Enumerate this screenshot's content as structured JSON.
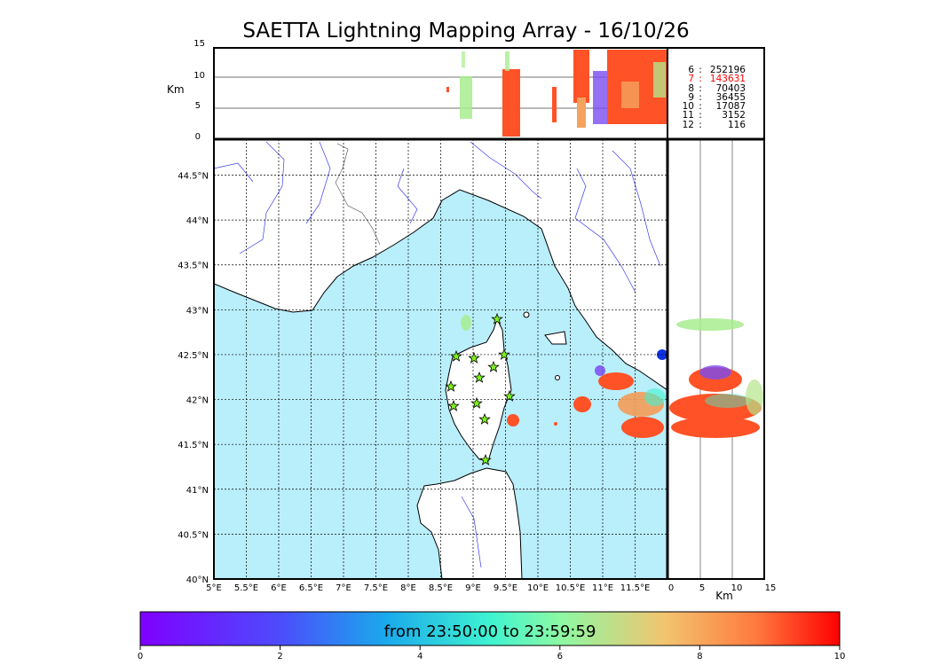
{
  "title": "SAETTA Lightning Mapping Array - 16/10/26",
  "altitude_panel": {
    "ylabel": "Km",
    "yticks": [
      "15",
      "10",
      "5",
      "0"
    ],
    "counts": [
      {
        "level": "6",
        "count": "252196",
        "color": "#000000"
      },
      {
        "level": "7",
        "count": "143631",
        "color": "#ff0000"
      },
      {
        "level": "8",
        "count": "70403",
        "color": "#000000"
      },
      {
        "level": "9",
        "count": "36455",
        "color": "#000000"
      },
      {
        "level": "10",
        "count": "17087",
        "color": "#000000"
      },
      {
        "level": "11",
        "count": "3152",
        "color": "#000000"
      },
      {
        "level": "12",
        "count": "116",
        "color": "#000000"
      }
    ]
  },
  "map": {
    "lon_ticks": [
      "5°E",
      "5.5°E",
      "6°E",
      "6.5°E",
      "7°E",
      "7.5°E",
      "8°E",
      "8.5°E",
      "9°E",
      "9.5°E",
      "10°E",
      "10.5°E",
      "11°E",
      "11.5°E"
    ],
    "lat_ticks": [
      "44.5°N",
      "44°N",
      "43.5°N",
      "43°N",
      "42.5°N",
      "42°N",
      "41.5°N",
      "41°N",
      "40.5°N",
      "40°N"
    ],
    "sea_color": "#b9eefb",
    "station_marker": "star"
  },
  "side_panel": {
    "xlabel": "Km",
    "xticks": [
      "0",
      "5",
      "10",
      "15"
    ]
  },
  "colorbar": {
    "label": "from 23:50:00 to 23:59:59",
    "ticks": [
      "0",
      "2",
      "4",
      "6",
      "8",
      "10"
    ],
    "cmap": "rainbow"
  }
}
